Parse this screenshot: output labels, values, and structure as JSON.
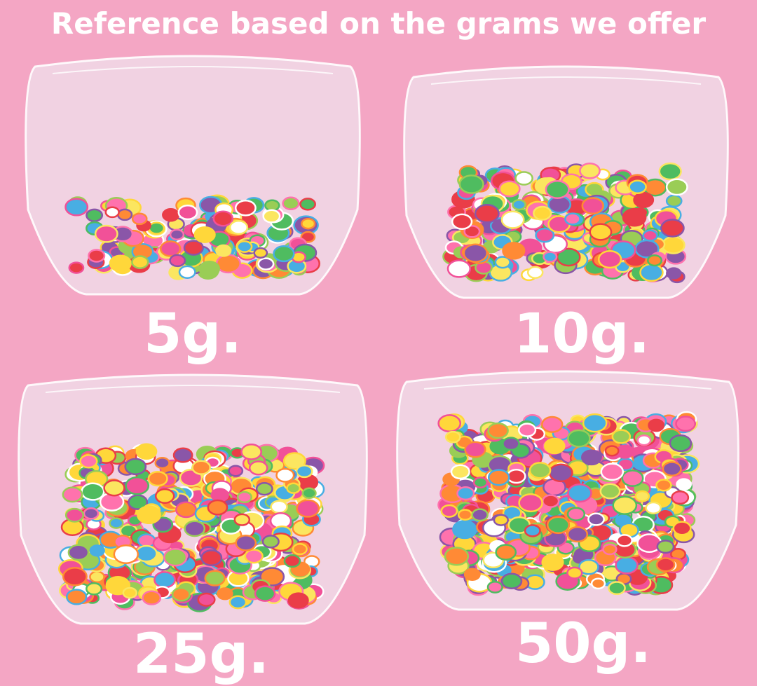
{
  "title": "Reference based on the grams we offer",
  "panels": [
    {
      "label": "5g."
    },
    {
      "label": "10g."
    },
    {
      "label": "25g."
    },
    {
      "label": "50g."
    }
  ]
}
